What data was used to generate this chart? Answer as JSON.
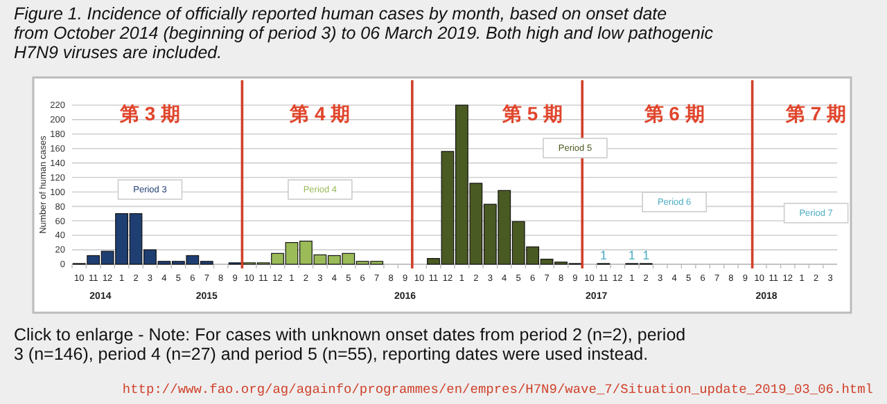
{
  "chart_data": {
    "type": "bar",
    "title": "Figure 1. Incidence of officially reported human cases by month, based on onset date from October 2014 (beginning of period 3) to 06 March 2019. Both high and low pathogenic H7N9 viruses are included.",
    "ylabel": "Number of human cases",
    "x": [
      "2014-10",
      "2014-11",
      "2014-12",
      "2015-01",
      "2015-02",
      "2015-03",
      "2015-04",
      "2015-05",
      "2015-06",
      "2015-07",
      "2015-08",
      "2015-09",
      "2015-10",
      "2015-11",
      "2015-12",
      "2016-01",
      "2016-02",
      "2016-03",
      "2016-04",
      "2016-05",
      "2016-06",
      "2016-07",
      "2016-08",
      "2016-09",
      "2016-10",
      "2016-11",
      "2016-12",
      "2017-01",
      "2017-02",
      "2017-03",
      "2017-04",
      "2017-05",
      "2017-06",
      "2017-07",
      "2017-08",
      "2017-09",
      "2017-10",
      "2017-11",
      "2017-12",
      "2018-01",
      "2018-02",
      "2018-03",
      "2018-04",
      "2018-05",
      "2018-06",
      "2018-07",
      "2018-08",
      "2018-09",
      "2018-10",
      "2018-11",
      "2018-12",
      "2019-01",
      "2019-02",
      "2019-03"
    ],
    "values": [
      1,
      12,
      18,
      70,
      70,
      20,
      4,
      4,
      12,
      4,
      0,
      2,
      2,
      2,
      15,
      30,
      32,
      13,
      12,
      15,
      4,
      4,
      0,
      0,
      0,
      8,
      156,
      220,
      112,
      83,
      102,
      59,
      24,
      7,
      3,
      1,
      0,
      1,
      0,
      1,
      1,
      0,
      0,
      0,
      0,
      0,
      0,
      0,
      0,
      0,
      0,
      0,
      0,
      0
    ],
    "colors": [
      "#1f3f73",
      "#1f3f73",
      "#1f3f73",
      "#1f3f73",
      "#1f3f73",
      "#1f3f73",
      "#1f3f73",
      "#1f3f73",
      "#1f3f73",
      "#1f3f73",
      "#1f3f73",
      "#1f3f73",
      "#9bbb59",
      "#9bbb59",
      "#9bbb59",
      "#9bbb59",
      "#9bbb59",
      "#9bbb59",
      "#9bbb59",
      "#9bbb59",
      "#9bbb59",
      "#9bbb59",
      "#9bbb59",
      "#9bbb59",
      "#4a5a23",
      "#4a5a23",
      "#4a5a23",
      "#4a5a23",
      "#4a5a23",
      "#4a5a23",
      "#4a5a23",
      "#4a5a23",
      "#4a5a23",
      "#4a5a23",
      "#4a5a23",
      "#4a5a23",
      "#4bacc6",
      "#4bacc6",
      "#4bacc6",
      "#4bacc6",
      "#4bacc6",
      "#4bacc6",
      "#4bacc6",
      "#4bacc6",
      "#4bacc6",
      "#4bacc6",
      "#4bacc6",
      "#4bacc6",
      "#4bacc6",
      "#4bacc6",
      "#4bacc6",
      "#4bacc6",
      "#4bacc6",
      "#4bacc6"
    ],
    "value_labels": [
      null,
      null,
      null,
      null,
      null,
      null,
      null,
      null,
      null,
      null,
      null,
      null,
      null,
      null,
      null,
      null,
      null,
      null,
      null,
      null,
      null,
      null,
      null,
      null,
      null,
      null,
      null,
      null,
      null,
      null,
      null,
      null,
      null,
      null,
      null,
      null,
      null,
      "1",
      null,
      "1",
      "1",
      null,
      null,
      null,
      null,
      null,
      null,
      null,
      null,
      null,
      null,
      null,
      null,
      null
    ],
    "xticks": [
      {
        "value": "2014-10",
        "label": "10"
      },
      {
        "value": "2014-11",
        "label": "11"
      },
      {
        "value": "2014-12",
        "label": "12"
      },
      {
        "value": "2015-01",
        "label": "1"
      },
      {
        "value": "2015-02",
        "label": "2"
      },
      {
        "value": "2015-03",
        "label": "3"
      },
      {
        "value": "2015-04",
        "label": "4"
      },
      {
        "value": "2015-05",
        "label": "5"
      },
      {
        "value": "2015-06",
        "label": "6"
      },
      {
        "value": "2015-07",
        "label": "7"
      },
      {
        "value": "2015-08",
        "label": "8"
      },
      {
        "value": "2015-09",
        "label": "9"
      },
      {
        "value": "2015-10",
        "label": "10"
      },
      {
        "value": "2015-11",
        "label": "11"
      },
      {
        "value": "2015-12",
        "label": "12"
      },
      {
        "value": "2016-01",
        "label": "1"
      },
      {
        "value": "2016-02",
        "label": "2"
      },
      {
        "value": "2016-03",
        "label": "3"
      },
      {
        "value": "2016-04",
        "label": "4"
      },
      {
        "value": "2016-05",
        "label": "5"
      },
      {
        "value": "2016-06",
        "label": "6"
      },
      {
        "value": "2016-07",
        "label": "7"
      },
      {
        "value": "2016-08",
        "label": "8"
      },
      {
        "value": "2016-09",
        "label": "9"
      },
      {
        "value": "2016-10",
        "label": "10"
      },
      {
        "value": "2016-11",
        "label": "11"
      },
      {
        "value": "2016-12",
        "label": "12"
      },
      {
        "value": "2017-01",
        "label": "1"
      },
      {
        "value": "2017-02",
        "label": "2"
      },
      {
        "value": "2017-03",
        "label": "3"
      },
      {
        "value": "2017-04",
        "label": "4"
      },
      {
        "value": "2017-05",
        "label": "5"
      },
      {
        "value": "2017-06",
        "label": "6"
      },
      {
        "value": "2017-07",
        "label": "7"
      },
      {
        "value": "2017-08",
        "label": "8"
      },
      {
        "value": "2017-09",
        "label": "9"
      },
      {
        "value": "2017-10",
        "label": "10"
      },
      {
        "value": "2017-11",
        "label": "11"
      },
      {
        "value": "2017-12",
        "label": "12"
      },
      {
        "value": "2018-01",
        "label": "1"
      },
      {
        "value": "2018-02",
        "label": "2"
      },
      {
        "value": "2018-03",
        "label": "3"
      },
      {
        "value": "2018-04",
        "label": "4"
      },
      {
        "value": "2018-05",
        "label": "5"
      },
      {
        "value": "2018-06",
        "label": "6"
      },
      {
        "value": "2018-07",
        "label": "7"
      },
      {
        "value": "2018-08",
        "label": "8"
      },
      {
        "value": "2018-09",
        "label": "9"
      },
      {
        "value": "2018-10",
        "label": "10"
      },
      {
        "value": "2018-11",
        "label": "11"
      },
      {
        "value": "2018-12",
        "label": "12"
      },
      {
        "value": "2019-01",
        "label": "1"
      },
      {
        "value": "2019-02",
        "label": "2"
      },
      {
        "value": "2019-03",
        "label": "3"
      }
    ],
    "xlim": [
      "2014-09-16",
      "2019-03-16"
    ],
    "ylim": [
      0,
      220
    ],
    "yticks": [
      0,
      20,
      40,
      60,
      80,
      100,
      120,
      140,
      160,
      180,
      200,
      220
    ],
    "grid": "y",
    "ref_lines": [
      {
        "axis": "x",
        "value": "2015-09-16",
        "color": "#d0402a"
      },
      {
        "axis": "x",
        "value": "2016-09-16",
        "color": "#d0402a"
      },
      {
        "axis": "x",
        "value": "2017-09-16",
        "color": "#d0402a"
      },
      {
        "axis": "x",
        "value": "2018-09-16",
        "color": "#d0402a"
      }
    ],
    "annotations": [
      "第 3 期",
      "第 4 期",
      "第 5 期",
      "第 6 期",
      "第 7 期",
      "Period 3",
      "Period 4",
      "Period 5",
      "Period 6",
      "Period 7",
      "2014",
      "2015",
      "2016",
      "2017",
      "2018",
      "Click to enlarge - Note: For cases with unknown onset dates from period 2 (n=2), period 3 (n=146), period 4 (n=27) and period 5 (n=55), reporting dates were used instead.",
      "http://www.fao.org/ag/againfo/programmes/en/empres/H7N9/wave_7/Situation_update_2019_03_06.html"
    ]
  }
}
